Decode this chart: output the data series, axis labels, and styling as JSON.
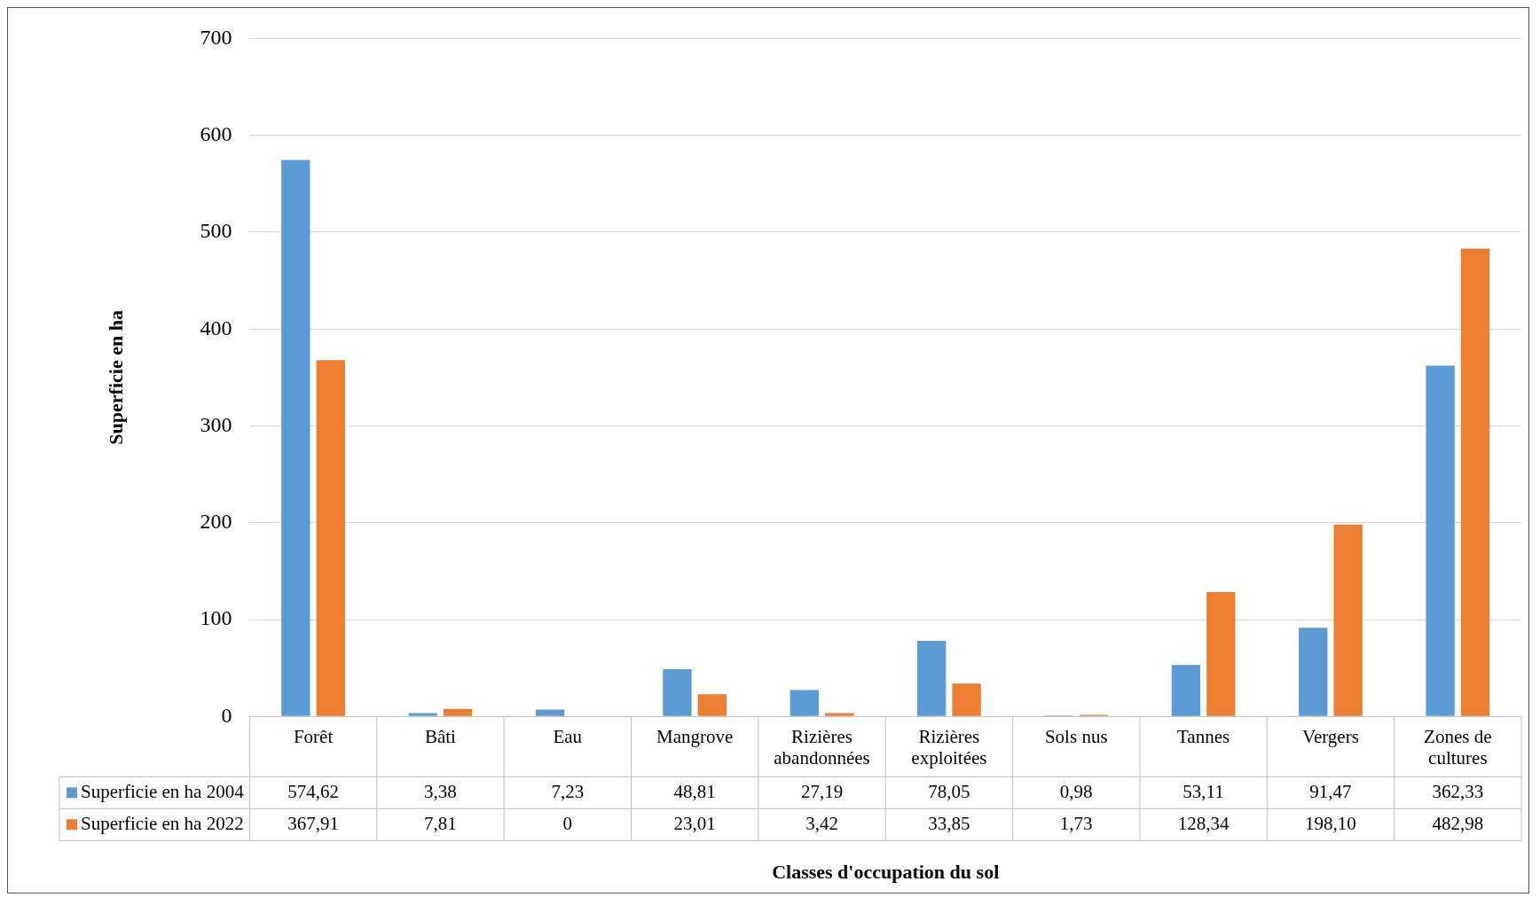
{
  "chart_data": {
    "type": "bar",
    "xlabel": "Classes d'occupation du sol",
    "ylabel": "Superficie en ha",
    "categories": [
      "Forêt",
      "Bâti",
      "Eau",
      "Mangrove",
      "Rizières abandonnées",
      "Rizières exploitées",
      "Sols nus",
      "Tannes",
      "Vergers",
      "Zones de cultures"
    ],
    "series": [
      {
        "name": "Superficie en ha 2004",
        "color": "#5b9bd5",
        "values": [
          574.62,
          3.38,
          7.23,
          48.81,
          27.19,
          78.05,
          0.98,
          53.11,
          91.47,
          362.33
        ],
        "value_labels": [
          "574,62",
          "3,38",
          "7,23",
          "48,81",
          "27,19",
          "78,05",
          "0,98",
          "53,11",
          "91,47",
          "362,33"
        ]
      },
      {
        "name": "Superficie en ha 2022",
        "color": "#ed7d31",
        "values": [
          367.91,
          7.81,
          0,
          23.01,
          3.42,
          33.85,
          1.73,
          128.34,
          198.1,
          482.98
        ],
        "value_labels": [
          "367,91",
          "7,81",
          "0",
          "23,01",
          "3,42",
          "33,85",
          "1,73",
          "128,34",
          "198,10",
          "482,98"
        ]
      }
    ],
    "ylim": [
      0,
      700
    ],
    "yticks": [
      0,
      100,
      200,
      300,
      400,
      500,
      600,
      700
    ],
    "grid": "y",
    "legend": "bottom"
  }
}
